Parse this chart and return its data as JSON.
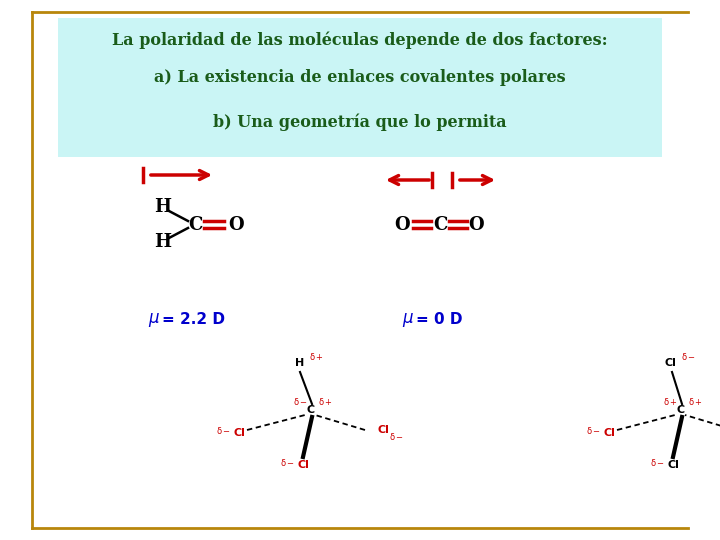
{
  "title_line1": "La polaridad de las moléculas depende de dos factores:",
  "title_line2": "a) La existencia de enlaces covalentes polares",
  "title_line3": "b) Una geometría que lo permita",
  "title_bg": "#caf5f5",
  "title_color": "#1a5c1a",
  "border_color": "#b8860b",
  "bg_color": "#ffffff",
  "arrow_color": "#cc0000",
  "molecule_color": "#000000",
  "dipole_color": "#0000cc",
  "dipole1_text": "μ = 2.2 D",
  "dipole2_text": "μ = 0 D"
}
